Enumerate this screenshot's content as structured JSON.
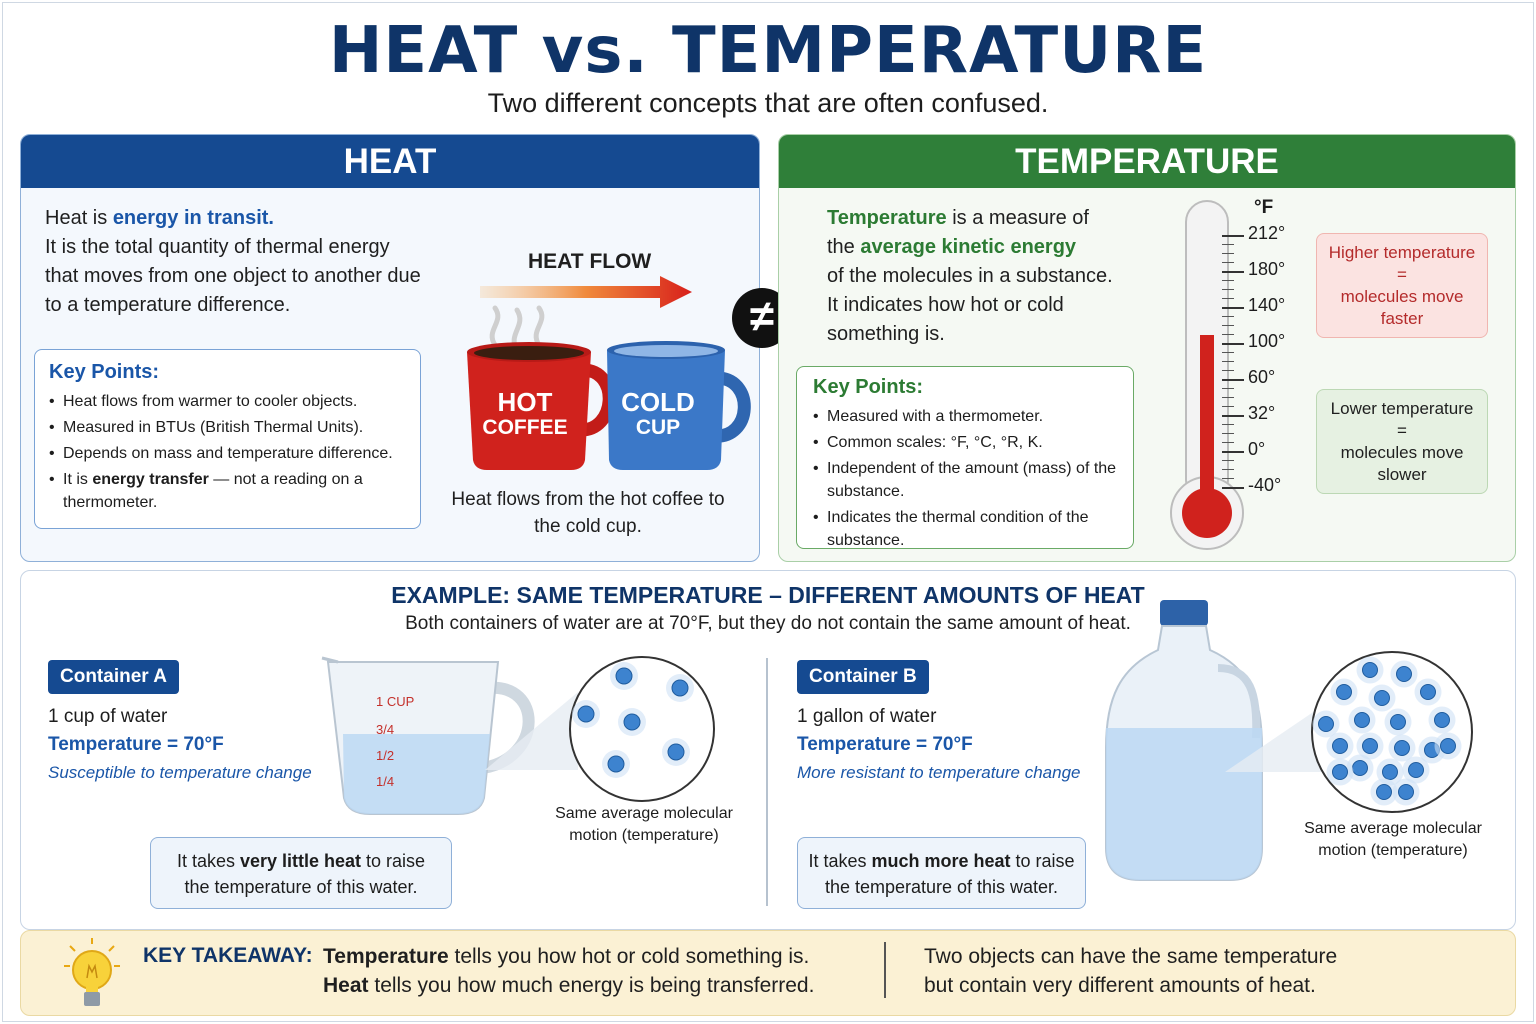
{
  "title": "HEAT vs. TEMPERATURE",
  "subtitle": "Two different concepts that are often confused.",
  "heat": {
    "heading": "HEAT",
    "intro_prefix": "Heat is ",
    "intro_highlight": "energy in transit.",
    "intro_rest": "It is the total quantity of thermal energy that moves from one object to another due to a temperature difference.",
    "key_points_title": "Key Points:",
    "key_points": [
      "Heat flows from warmer to cooler objects.",
      "Measured in BTUs (British Thermal Units).",
      "Depends on mass and temperature difference."
    ],
    "key_point_last_bold": "energy transfer",
    "key_point_last_prefix": "It is ",
    "key_point_last_suffix": " — not a reading on a thermometer.",
    "flow_label": "HEAT FLOW",
    "hot_mug_line1": "HOT",
    "hot_mug_line2": "COFFEE",
    "cold_mug_line1": "COLD",
    "cold_mug_line2": "CUP",
    "caption": "Heat flows from the hot coffee to the cold cup."
  },
  "not_equal_symbol": "≠",
  "temperature": {
    "heading": "TEMPERATURE",
    "intro_bold1": "Temperature",
    "intro_text1": " is a measure of",
    "intro_text2": "the ",
    "intro_bold2": "average kinetic energy",
    "intro_text3": "of the molecules in a substance.",
    "intro_text4": "It indicates how hot or cold",
    "intro_text5": "something is.",
    "key_points_title": "Key Points:",
    "key_points": [
      "Measured with a thermometer.",
      "Common scales: °F, °C, °R, K.",
      "Independent of the amount (mass) of the substance.",
      "Indicates the thermal condition of the substance."
    ],
    "thermometer_unit": "°F",
    "thermometer_ticks": [
      "212°",
      "180°",
      "140°",
      "100°",
      "60°",
      "32°",
      "0°",
      "-40°"
    ],
    "thermometer_level_f": 100,
    "higher_note": [
      "Higher temperature",
      "=",
      "molecules move",
      "faster"
    ],
    "lower_note": [
      "Lower temperature",
      "=",
      "molecules move",
      "slower"
    ]
  },
  "example": {
    "title": "EXAMPLE: SAME TEMPERATURE – DIFFERENT AMOUNTS OF HEAT",
    "subtitle": "Both containers of water are at 70°F, but they do not contain the same amount of heat.",
    "container_a": {
      "tag": "Container A",
      "amount": "1 cup of water",
      "temperature": "Temperature = 70°F",
      "note": "Susceptible to temperature change",
      "cup_marks": [
        "1 CUP",
        "3/4",
        "1/2",
        "1/4"
      ],
      "molecule_caption": "Same average molecular motion (temperature)",
      "heat_prefix": "It takes ",
      "heat_bold": "very little heat",
      "heat_suffix": " to raise",
      "heat_line2": "the temperature of this water."
    },
    "container_b": {
      "tag": "Container B",
      "amount": "1 gallon of water",
      "temperature": "Temperature = 70°F",
      "note": "More resistant to temperature change",
      "molecule_caption": "Same average molecular motion (temperature)",
      "heat_prefix": "It takes ",
      "heat_bold": "much more heat",
      "heat_suffix": " to raise",
      "heat_line2": "the temperature of this water."
    }
  },
  "takeaway": {
    "label": "KEY TAKEAWAY:",
    "line1_bold": "Temperature",
    "line1_rest": " tells you how hot or cold something is.",
    "line2_bold": "Heat",
    "line2_rest": " tells you how much energy is being transferred.",
    "right_line1": "Two objects can have the same temperature",
    "right_line2": "but contain very different amounts of heat."
  },
  "colors": {
    "navy": "#0f3468",
    "heat_blue": "#154a91",
    "temp_green": "#2f7f39",
    "hot_red": "#d0221d",
    "cold_blue": "#3b78c8"
  }
}
